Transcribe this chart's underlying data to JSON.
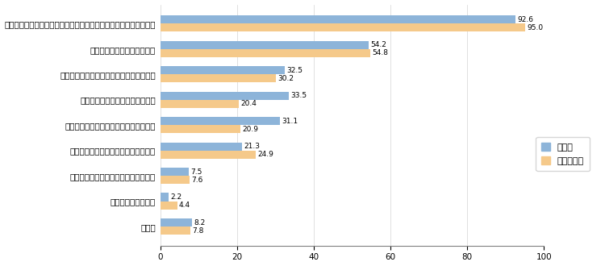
{
  "categories": [
    "その他",
    "再就職につながった",
    "適切な職業能力開発の方法がわかった",
    "現在の会社で働き続ける意欲が湧いた",
    "上司・部下との意思疏通が円滑になった",
    "自己問発を行うきっかけになった",
    "自分の目指すべきキャリアが明確になった",
    "仕事に対する意識が高まった",
    "キャリアに関する相談（キャリアコンサルティング）が役に立った"
  ],
  "seishain": [
    8.2,
    2.2,
    7.5,
    21.3,
    31.1,
    33.5,
    32.5,
    54.2,
    92.6
  ],
  "seishain_igai": [
    7.8,
    4.4,
    7.6,
    24.9,
    20.9,
    20.4,
    30.2,
    54.8,
    95.0
  ],
  "color_seishain": "#8DB4D9",
  "color_igai": "#F5C98A",
  "xlim": [
    0,
    100
  ],
  "xticks": [
    0,
    20,
    40,
    60,
    80,
    100
  ],
  "legend_seishain": "正社員",
  "legend_igai": "正社員以外",
  "label_fontsize": 6.5,
  "tick_fontsize": 7.5,
  "bar_height": 0.32
}
